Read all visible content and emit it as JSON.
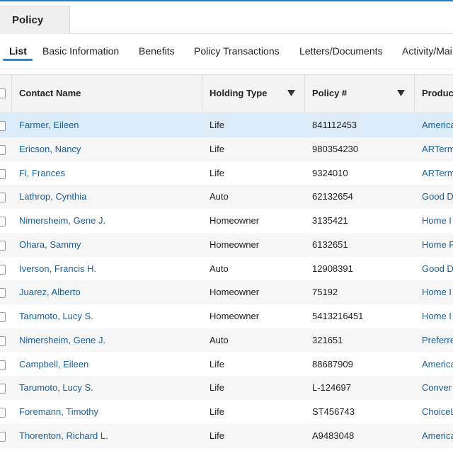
{
  "header": {
    "tab": "Policy"
  },
  "subtabs": [
    "List",
    "Basic Information",
    "Benefits",
    "Policy Transactions",
    "Letters/Documents",
    "Activity/Mai"
  ],
  "table": {
    "columns": [
      "Contact Name",
      "Holding Type",
      "Policy #",
      "Produc"
    ],
    "rows": [
      [
        "Farmer, Eileen",
        "Life",
        "841112453",
        "America"
      ],
      [
        "Ericson, Nancy",
        "Life",
        "980354230",
        "ARTerm"
      ],
      [
        "Fi, Frances",
        "Life",
        "9324010",
        "ARTerm"
      ],
      [
        "Lathrop, Cynthia",
        "Auto",
        "62132654",
        "Good D"
      ],
      [
        "Nimersheim, Gene J.",
        "Homeowner",
        "3135421",
        "Home I"
      ],
      [
        "Ohara, Sammy",
        "Homeowner",
        "6132651",
        "Home F"
      ],
      [
        "Iverson, Francis H.",
        "Auto",
        "12908391",
        "Good D"
      ],
      [
        "Juarez, Alberto",
        "Homeowner",
        "75192",
        "Home I"
      ],
      [
        "Tarumoto, Lucy S.",
        "Homeowner",
        "5413216451",
        "Home I"
      ],
      [
        "Nimersheim, Gene J.",
        "Auto",
        "321651",
        "Preferre"
      ],
      [
        "Campbell, Eileen",
        "Life",
        "88687909",
        "America"
      ],
      [
        "Tarumoto, Lucy S.",
        "Life",
        "L-124697",
        "Conver"
      ],
      [
        "Foremann, Timothy",
        "Life",
        "ST456743",
        "ChoiceL"
      ],
      [
        "Thorenton, Richard L.",
        "Life",
        "A9483048",
        "America"
      ]
    ]
  }
}
